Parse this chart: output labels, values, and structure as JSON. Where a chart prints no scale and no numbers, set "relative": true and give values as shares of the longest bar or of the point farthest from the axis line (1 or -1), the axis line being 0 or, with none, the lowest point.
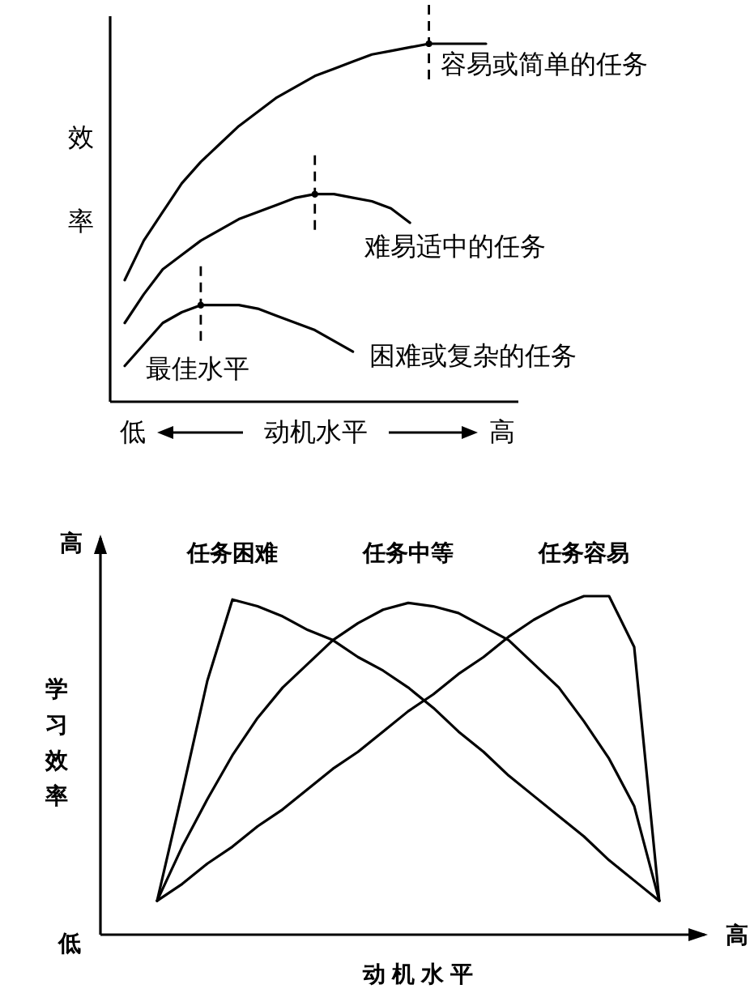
{
  "chart_data": [
    {
      "type": "line",
      "relative": true,
      "xlabel": "动机水平",
      "ylabel": "效率",
      "categories": [
        null,
        null,
        null,
        null,
        null,
        null,
        null,
        null,
        null,
        null,
        null,
        null,
        null,
        null,
        null,
        null,
        null,
        null,
        null,
        null
      ],
      "series": [
        {
          "name": "容易或简单的任务",
          "color": "#000000",
          "values": [
            0.34,
            0.45,
            0.53,
            0.61,
            0.67,
            0.72,
            0.77,
            0.81,
            0.85,
            0.88,
            0.91,
            0.93,
            0.95,
            0.97,
            0.98,
            0.99,
            1,
            1,
            1,
            1
          ]
        },
        {
          "name": "难易适中的任务",
          "color": "#000000",
          "values": [
            0.22,
            0.3,
            0.37,
            0.41,
            0.45,
            0.48,
            0.51,
            0.53,
            0.55,
            0.57,
            0.58,
            0.58,
            0.57,
            0.56,
            0.54,
            0.5,
            null,
            null,
            null,
            null
          ]
        },
        {
          "name": "困难或复杂的任务",
          "color": "#000000",
          "values": [
            0.1,
            0.16,
            0.22,
            0.25,
            0.27,
            0.27,
            0.27,
            0.26,
            0.24,
            0.22,
            0.2,
            0.17,
            0.14,
            null,
            null,
            null,
            null,
            null,
            null,
            null
          ]
        }
      ],
      "annotations": [
        "最佳水平",
        "低",
        "高"
      ]
    },
    {
      "type": "line",
      "relative": true,
      "xlabel": "动 机 水 平",
      "ylabel": "学习效率",
      "categories": [
        null,
        null,
        null,
        null,
        null,
        null,
        null,
        null,
        null,
        null,
        null,
        null,
        null,
        null,
        null,
        null,
        null,
        null,
        null,
        null,
        null
      ],
      "series": [
        {
          "name": "任务困难",
          "color": "#000000",
          "values": [
            0.1,
            0.42,
            0.75,
            0.99,
            0.97,
            0.94,
            0.9,
            0.87,
            0.82,
            0.78,
            0.73,
            0.67,
            0.6,
            0.54,
            0.47,
            0.41,
            0.35,
            0.29,
            0.22,
            0.16,
            0.1
          ]
        },
        {
          "name": "任务中等",
          "color": "#000000",
          "values": [
            0.1,
            0.26,
            0.4,
            0.53,
            0.64,
            0.73,
            0.8,
            0.87,
            0.92,
            0.96,
            0.98,
            0.97,
            0.95,
            0.91,
            0.87,
            0.8,
            0.73,
            0.63,
            0.52,
            0.38,
            0.1
          ]
        },
        {
          "name": "任务容易",
          "color": "#000000",
          "values": [
            0.1,
            0.15,
            0.21,
            0.26,
            0.32,
            0.37,
            0.43,
            0.49,
            0.54,
            0.6,
            0.66,
            0.71,
            0.77,
            0.82,
            0.88,
            0.93,
            0.97,
            1.0,
            1.0,
            0.85,
            0.1
          ]
        }
      ],
      "annotations": [
        "高",
        "低",
        "高"
      ]
    }
  ]
}
